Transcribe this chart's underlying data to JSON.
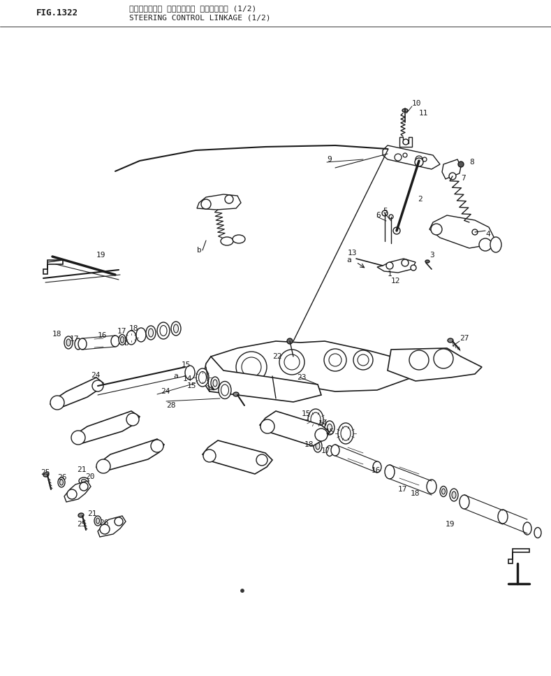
{
  "title_japanese": "ステアリング　 コントロール リンケージ　 (1/2)",
  "title_english": "STEERING CONTROL LINKAGE (1/2)",
  "fig_label": "FIG.1322",
  "bg_color": "#ffffff",
  "line_color": "#1a1a1a",
  "text_color": "#1a1a1a"
}
